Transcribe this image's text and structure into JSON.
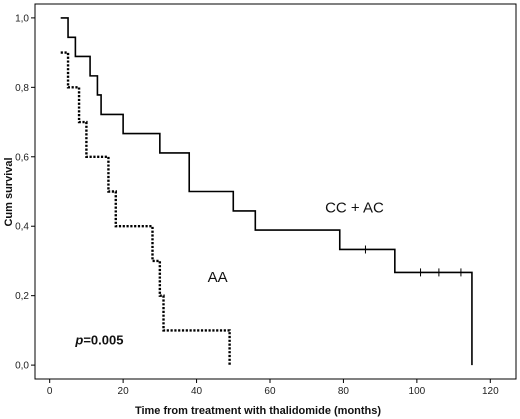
{
  "chart_data": {
    "type": "line",
    "subtype": "kaplan-meier step",
    "title": "",
    "xlabel": "Time from treatment with thalidomide (months)",
    "ylabel": "Cum survival",
    "xlim": [
      -4,
      127
    ],
    "ylim": [
      -0.04,
      1.04
    ],
    "x_ticks": [
      0,
      20,
      40,
      60,
      80,
      100,
      120
    ],
    "x_tick_labels": [
      "0",
      "20",
      "40",
      "60",
      "80",
      "100",
      "120"
    ],
    "y_ticks": [
      0,
      0.2,
      0.4,
      0.6,
      0.8,
      1.0
    ],
    "y_tick_labels": [
      "0,0",
      "0,2",
      "0,4",
      "0,6",
      "0,8",
      "1,0"
    ],
    "grid": false,
    "series": [
      {
        "name": "CC + AC",
        "style": "solid",
        "color": "#000000",
        "steps": [
          [
            3,
            1.0
          ],
          [
            5,
            0.944
          ],
          [
            7,
            0.889
          ],
          [
            11,
            0.833
          ],
          [
            13,
            0.778
          ],
          [
            14,
            0.722
          ],
          [
            20,
            0.667
          ],
          [
            30,
            0.611
          ],
          [
            38,
            0.5
          ],
          [
            50,
            0.444
          ],
          [
            56,
            0.389
          ],
          [
            79,
            0.333
          ],
          [
            94,
            0.267
          ],
          [
            115,
            0.0
          ]
        ],
        "censored": [
          [
            86,
            0.333
          ],
          [
            101,
            0.267
          ],
          [
            106,
            0.267
          ],
          [
            112,
            0.267
          ]
        ]
      },
      {
        "name": "AA",
        "style": "dotted",
        "color": "#000000",
        "steps": [
          [
            3,
            0.9
          ],
          [
            5,
            0.8
          ],
          [
            8,
            0.7
          ],
          [
            10,
            0.6
          ],
          [
            16,
            0.5
          ],
          [
            18,
            0.4
          ],
          [
            28,
            0.3
          ],
          [
            30,
            0.2
          ],
          [
            31,
            0.1
          ],
          [
            49,
            0.0
          ]
        ],
        "censored": []
      }
    ],
    "annotations": [
      {
        "text": "CC + AC",
        "x": 75,
        "y": 0.44
      },
      {
        "text": "AA",
        "x": 43,
        "y": 0.24
      },
      {
        "text": "p=0.005",
        "x": 7,
        "y": 0.06
      }
    ]
  }
}
